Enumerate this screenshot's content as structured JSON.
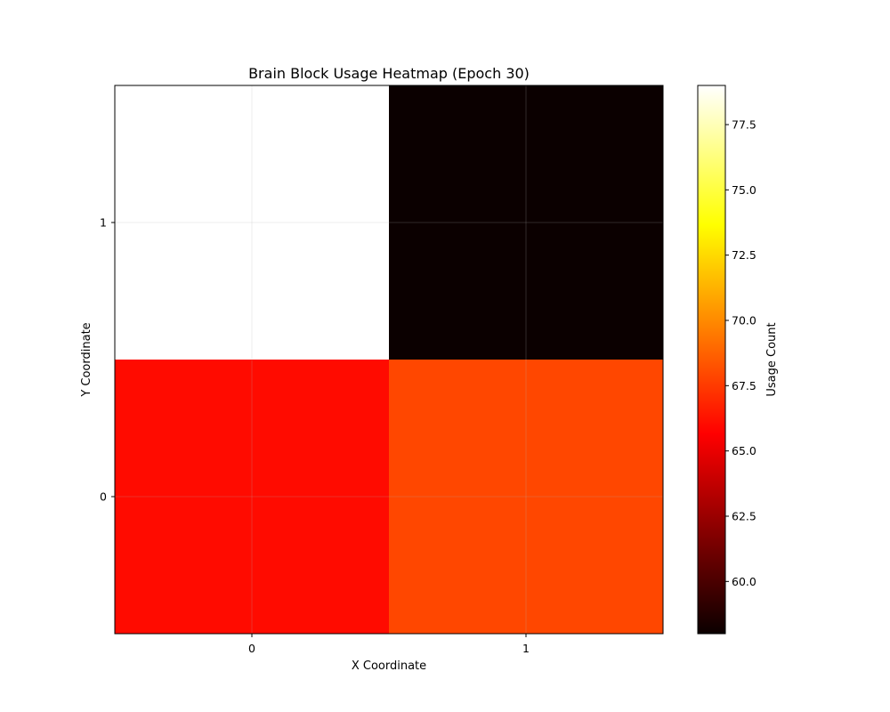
{
  "chart_data": {
    "type": "heatmap",
    "title": "Brain Block Usage Heatmap (Epoch 30)",
    "xlabel": "X Coordinate",
    "ylabel": "Y Coordinate",
    "x_categories": [
      "0",
      "1"
    ],
    "y_categories": [
      "0",
      "1"
    ],
    "values": [
      {
        "x": "0",
        "y": "0",
        "value": 66.0
      },
      {
        "x": "1",
        "y": "0",
        "value": 67.9
      },
      {
        "x": "0",
        "y": "1",
        "value": 79.0
      },
      {
        "x": "1",
        "y": "1",
        "value": 58.0
      }
    ],
    "colormap": "hot",
    "colorbar": {
      "label": "Usage Count",
      "range": [
        58.0,
        79.0
      ],
      "ticks": [
        "60.0",
        "62.5",
        "65.0",
        "67.5",
        "70.0",
        "72.5",
        "75.0",
        "77.5"
      ]
    },
    "grid": true
  }
}
